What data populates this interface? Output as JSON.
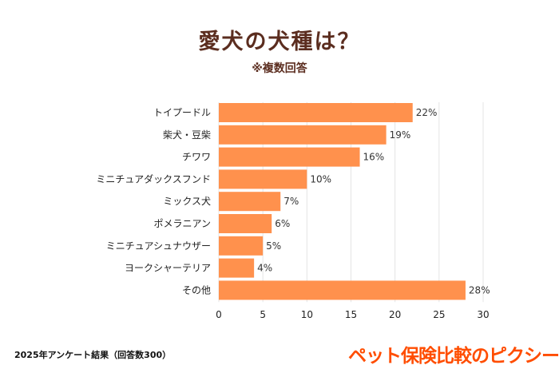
{
  "chart_data": {
    "type": "bar",
    "orientation": "horizontal",
    "title": "愛犬の犬種は？",
    "subtitle": "※複数回答",
    "categories": [
      "トイプードル",
      "柴犬・豆柴",
      "チワワ",
      "ミニチュアダックスフンド",
      "ミックス犬",
      "ポメラニアン",
      "ミニチュアシュナウザー",
      "ヨークシャーテリア",
      "その他"
    ],
    "values": [
      22,
      19,
      16,
      10,
      7,
      6,
      5,
      4,
      28
    ],
    "value_labels": [
      "22%",
      "19%",
      "16%",
      "10%",
      "7%",
      "6%",
      "5%",
      "4%",
      "28%"
    ],
    "xlim": [
      0,
      30
    ],
    "xticks": [
      "0",
      "5",
      "10",
      "15",
      "20",
      "25",
      "30"
    ],
    "grid": true,
    "xlabel": "",
    "ylabel": "",
    "bar_color": "#ff914d",
    "title_color": "#5b2d1f"
  },
  "footnote": "2025年アンケート結果（回答数300）",
  "logo": "ペット保険比較のピクシー",
  "logo_color": "#ff4d00"
}
